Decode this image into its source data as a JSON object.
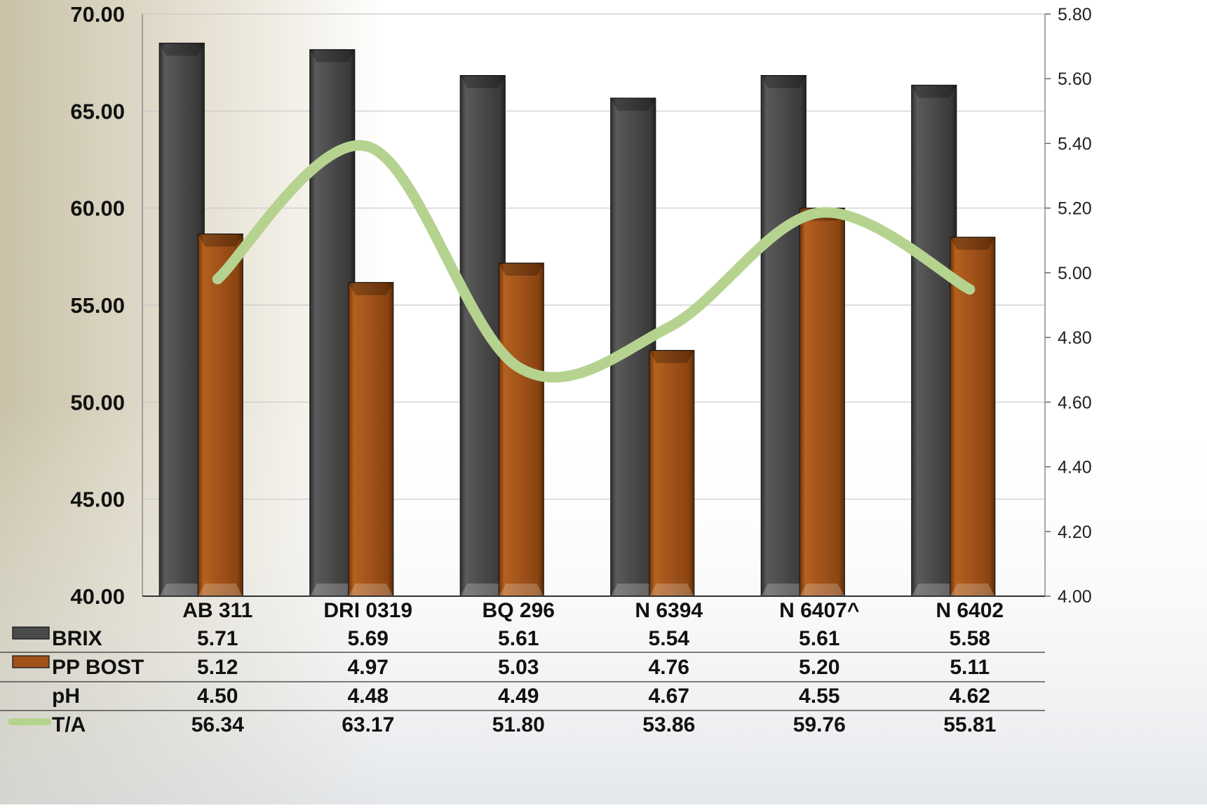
{
  "chart_data": {
    "type": "bar",
    "categories": [
      "AB 311",
      "DRI 0319",
      "BQ 296",
      "N 6394",
      "N 6407^",
      "N 6402"
    ],
    "y_left": {
      "ylim": [
        40,
        70
      ],
      "ticks": [
        "40.00",
        "45.00",
        "50.00",
        "55.00",
        "60.00",
        "65.00",
        "70.00"
      ]
    },
    "y_right": {
      "ylim": [
        4.0,
        5.8
      ],
      "ticks": [
        "4.00",
        "4.20",
        "4.40",
        "4.60",
        "4.80",
        "5.00",
        "5.20",
        "5.40",
        "5.60",
        "5.80"
      ]
    },
    "gridlines": true,
    "series": [
      {
        "name": "BRIX",
        "kind": "bar",
        "axis": "right",
        "color": "#4a4a4a",
        "values": [
          5.71,
          5.69,
          5.61,
          5.54,
          5.61,
          5.58
        ],
        "labels": [
          "5.71",
          "5.69",
          "5.61",
          "5.54",
          "5.61",
          "5.58"
        ]
      },
      {
        "name": "PP BOST",
        "kind": "bar",
        "axis": "right",
        "color": "#a0521a",
        "values": [
          5.12,
          4.97,
          5.03,
          4.76,
          5.2,
          5.11
        ],
        "labels": [
          "5.12",
          "4.97",
          "5.03",
          "4.76",
          "5.20",
          "5.11"
        ]
      },
      {
        "name": "pH",
        "kind": "none",
        "axis": "right",
        "color": "",
        "values": [
          4.5,
          4.48,
          4.49,
          4.67,
          4.55,
          4.62
        ],
        "labels": [
          "4.50",
          "4.48",
          "4.49",
          "4.67",
          "4.55",
          "4.62"
        ]
      },
      {
        "name": "T/A",
        "kind": "line",
        "axis": "left",
        "color": "#b5d38f",
        "values": [
          56.34,
          63.17,
          51.8,
          53.86,
          59.76,
          55.81
        ],
        "labels": [
          "56.34",
          "63.17",
          "51.80",
          "53.86",
          "59.76",
          "55.81"
        ]
      }
    ]
  }
}
